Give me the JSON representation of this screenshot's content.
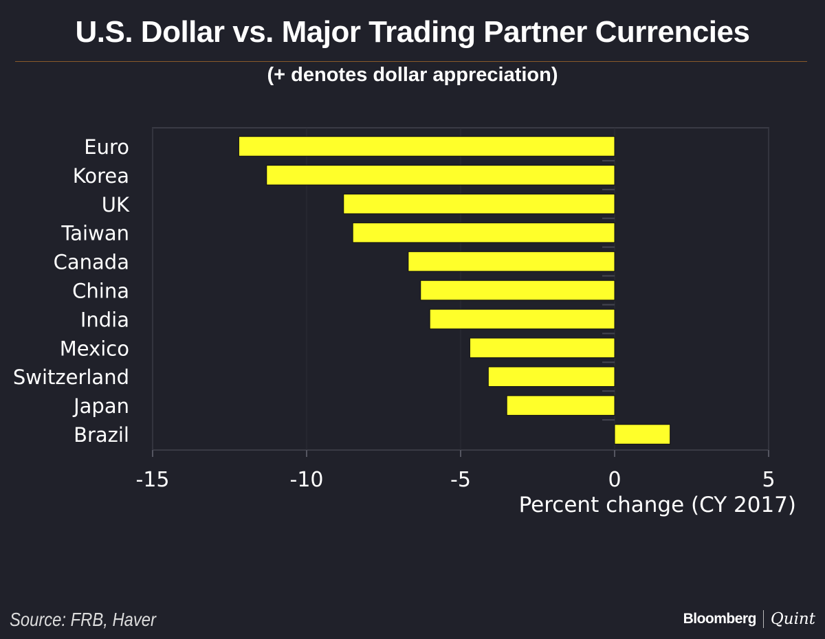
{
  "title": "U.S. Dollar vs. Major Trading Partner Currencies",
  "subtitle": "(+ denotes dollar appreciation)",
  "source": "Source: FRB, Haver",
  "logo": {
    "brand": "Bloomberg",
    "partner": "Quint"
  },
  "chart_data": {
    "type": "bar",
    "orientation": "horizontal",
    "categories": [
      "Euro",
      "Korea",
      "UK",
      "Taiwan",
      "Canada",
      "China",
      "India",
      "Mexico",
      "Switzerland",
      "Japan",
      "Brazil"
    ],
    "values": [
      -12.2,
      -11.3,
      -8.8,
      -8.5,
      -6.7,
      -6.3,
      -6.0,
      -4.7,
      -4.1,
      -3.5,
      1.8
    ],
    "xlabel": "Percent change (CY 2017)",
    "ylabel": "",
    "xlim": [
      -15,
      5
    ],
    "xticks": [
      "-15",
      "-10",
      "-5",
      "0",
      "5"
    ],
    "grid": true,
    "bar_color": "#ffff2a",
    "background": "#20212a"
  }
}
